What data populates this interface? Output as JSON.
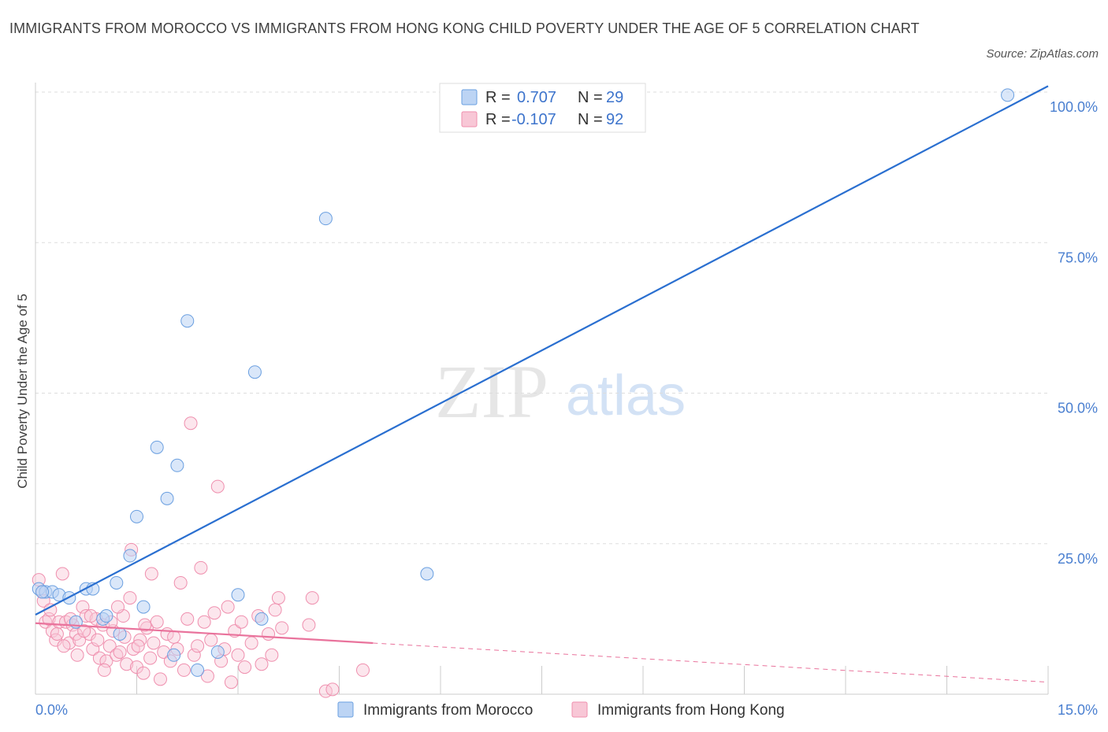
{
  "header": {
    "title": "IMMIGRANTS FROM MOROCCO VS IMMIGRANTS FROM HONG KONG CHILD POVERTY UNDER THE AGE OF 5 CORRELATION CHART",
    "source": "Source: ZipAtlas.com"
  },
  "watermark": {
    "zip": "ZIP",
    "atlas": "atlas"
  },
  "colors": {
    "morocco": "#6a9fe0",
    "morocco_fill": "#bcd4f4",
    "morocco_line": "#2a6fd0",
    "hongkong": "#ef8fae",
    "hongkong_fill": "#f8c7d6",
    "hongkong_line": "#e9739c",
    "grid": "#dddddd",
    "tick_text": "#4a7fd0"
  },
  "legend": {
    "rows": [
      {
        "r_label": "R =",
        "r_value": "0.707",
        "n_label": "N =",
        "n_value": "29"
      },
      {
        "r_label": "R =",
        "r_value": "-0.107",
        "n_label": "N =",
        "n_value": "92"
      }
    ]
  },
  "bottom_legend": {
    "items": [
      "Immigrants from Morocco",
      "Immigrants from Hong Kong"
    ]
  },
  "chart_data": {
    "type": "scatter",
    "title": "IMMIGRANTS FROM MOROCCO VS IMMIGRANTS FROM HONG KONG CHILD POVERTY UNDER THE AGE OF 5 CORRELATION CHART",
    "xlabel": "",
    "ylabel": "Child Poverty Under the Age of 5",
    "xlim": [
      0,
      15
    ],
    "ylim": [
      0,
      100
    ],
    "x_tick_labels": [
      "0.0%",
      "15.0%"
    ],
    "y_tick_labels": [
      "25.0%",
      "50.0%",
      "75.0%",
      "100.0%"
    ],
    "y_ticks": [
      25,
      50,
      75,
      100
    ],
    "grid": true,
    "legend_position": "top-center",
    "series": [
      {
        "name": "Immigrants from Morocco",
        "R": 0.707,
        "N": 29,
        "trend": {
          "x": [
            0.0,
            15.0
          ],
          "y": [
            13.2,
            101.0
          ]
        },
        "points": [
          [
            0.05,
            17.5
          ],
          [
            0.15,
            17.0
          ],
          [
            0.25,
            17.0
          ],
          [
            0.35,
            16.5
          ],
          [
            0.5,
            16.0
          ],
          [
            0.6,
            12.0
          ],
          [
            0.75,
            17.5
          ],
          [
            0.85,
            17.5
          ],
          [
            1.0,
            12.5
          ],
          [
            1.05,
            13.0
          ],
          [
            1.2,
            18.5
          ],
          [
            1.25,
            10.0
          ],
          [
            1.4,
            23.0
          ],
          [
            1.5,
            29.5
          ],
          [
            1.6,
            14.5
          ],
          [
            1.8,
            41.0
          ],
          [
            1.95,
            32.5
          ],
          [
            2.1,
            38.0
          ],
          [
            2.05,
            6.5
          ],
          [
            2.25,
            62.0
          ],
          [
            2.4,
            4.0
          ],
          [
            2.7,
            7.0
          ],
          [
            3.0,
            16.5
          ],
          [
            3.25,
            53.5
          ],
          [
            3.35,
            12.5
          ],
          [
            4.3,
            79.0
          ],
          [
            5.8,
            20.0
          ],
          [
            14.4,
            99.5
          ],
          [
            0.1,
            17.0
          ]
        ]
      },
      {
        "name": "Immigrants from Hong Kong",
        "R": -0.107,
        "N": 92,
        "trend": {
          "x": [
            0.0,
            5.0
          ],
          "y": [
            11.8,
            8.5
          ]
        },
        "trend_dashed": {
          "x": [
            5.0,
            15.0
          ],
          "y": [
            8.5,
            2.0
          ]
        },
        "points": [
          [
            0.05,
            19.0
          ],
          [
            0.1,
            17.0
          ],
          [
            0.15,
            12.0
          ],
          [
            0.2,
            12.5
          ],
          [
            0.25,
            10.5
          ],
          [
            0.3,
            9.0
          ],
          [
            0.35,
            12.0
          ],
          [
            0.4,
            20.0
          ],
          [
            0.45,
            12.0
          ],
          [
            0.5,
            8.5
          ],
          [
            0.55,
            11.5
          ],
          [
            0.6,
            10.0
          ],
          [
            0.65,
            9.0
          ],
          [
            0.7,
            14.5
          ],
          [
            0.75,
            13.0
          ],
          [
            0.8,
            10.0
          ],
          [
            0.85,
            7.5
          ],
          [
            0.9,
            12.5
          ],
          [
            0.95,
            6.0
          ],
          [
            1.0,
            11.5
          ],
          [
            1.05,
            5.5
          ],
          [
            1.1,
            8.0
          ],
          [
            1.15,
            10.5
          ],
          [
            1.2,
            6.5
          ],
          [
            1.25,
            7.0
          ],
          [
            1.3,
            13.0
          ],
          [
            1.35,
            5.0
          ],
          [
            1.4,
            16.0
          ],
          [
            1.45,
            7.5
          ],
          [
            1.5,
            4.5
          ],
          [
            1.55,
            9.0
          ],
          [
            1.6,
            3.5
          ],
          [
            1.65,
            11.0
          ],
          [
            1.7,
            6.0
          ],
          [
            1.75,
            8.5
          ],
          [
            1.8,
            12.0
          ],
          [
            1.85,
            2.5
          ],
          [
            1.9,
            7.0
          ],
          [
            1.95,
            10.0
          ],
          [
            2.0,
            5.5
          ],
          [
            2.05,
            9.5
          ],
          [
            2.1,
            7.5
          ],
          [
            2.15,
            18.5
          ],
          [
            2.2,
            4.0
          ],
          [
            2.25,
            12.5
          ],
          [
            2.3,
            45.0
          ],
          [
            2.35,
            6.5
          ],
          [
            2.4,
            8.0
          ],
          [
            2.45,
            21.0
          ],
          [
            2.5,
            12.0
          ],
          [
            2.55,
            3.0
          ],
          [
            2.6,
            9.0
          ],
          [
            2.65,
            13.5
          ],
          [
            2.7,
            34.5
          ],
          [
            2.75,
            5.5
          ],
          [
            2.8,
            7.5
          ],
          [
            2.85,
            14.5
          ],
          [
            2.9,
            2.0
          ],
          [
            2.95,
            10.5
          ],
          [
            3.0,
            6.5
          ],
          [
            3.05,
            12.0
          ],
          [
            3.1,
            4.5
          ],
          [
            3.2,
            8.5
          ],
          [
            3.3,
            13.0
          ],
          [
            3.35,
            5.0
          ],
          [
            3.45,
            10.0
          ],
          [
            3.5,
            6.5
          ],
          [
            3.55,
            14.0
          ],
          [
            3.6,
            16.0
          ],
          [
            3.65,
            11.0
          ],
          [
            4.05,
            11.5
          ],
          [
            4.1,
            16.0
          ],
          [
            4.3,
            0.5
          ],
          [
            4.4,
            0.8
          ],
          [
            4.85,
            4.0
          ],
          [
            0.12,
            15.5
          ],
          [
            0.22,
            14.0
          ],
          [
            0.32,
            10.0
          ],
          [
            0.42,
            8.0
          ],
          [
            0.52,
            12.5
          ],
          [
            0.62,
            6.5
          ],
          [
            0.72,
            10.5
          ],
          [
            0.82,
            13.0
          ],
          [
            0.92,
            9.0
          ],
          [
            1.02,
            4.0
          ],
          [
            1.12,
            12.0
          ],
          [
            1.22,
            14.5
          ],
          [
            1.32,
            9.5
          ],
          [
            1.42,
            24.0
          ],
          [
            1.52,
            8.0
          ],
          [
            1.62,
            11.5
          ],
          [
            1.72,
            20.0
          ]
        ]
      }
    ]
  }
}
